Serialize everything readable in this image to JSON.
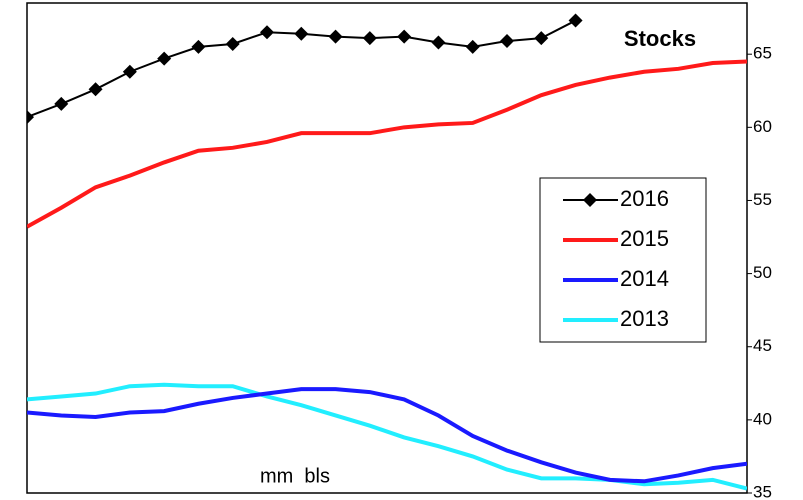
{
  "chart_data": {
    "type": "line",
    "annotations": [
      "Stocks",
      "mm  bls"
    ],
    "categories": [
      null,
      null,
      null,
      null,
      null,
      null,
      null,
      null,
      null,
      null,
      null,
      null,
      null,
      null,
      null,
      null,
      null,
      null,
      null,
      null,
      null,
      null
    ],
    "ylim": [
      35,
      68.5
    ],
    "yticks": [
      35,
      40,
      45,
      50,
      55,
      60,
      65
    ],
    "y_axis_side": "right",
    "series": [
      {
        "name": "2016",
        "color": "#000000",
        "marker": "diamond",
        "values": [
          60.7,
          61.6,
          62.6,
          63.8,
          64.7,
          65.5,
          65.7,
          66.5,
          66.4,
          66.2,
          66.1,
          66.2,
          65.8,
          65.5,
          65.9,
          66.1,
          67.3,
          null,
          null,
          null,
          null,
          null
        ]
      },
      {
        "name": "2015",
        "color": "#ff1a1a",
        "values": [
          53.2,
          54.5,
          55.9,
          56.7,
          57.6,
          58.4,
          58.6,
          59.0,
          59.6,
          59.6,
          59.6,
          60.0,
          60.2,
          60.3,
          61.2,
          62.2,
          62.9,
          63.4,
          63.8,
          64.0,
          64.4,
          64.5
        ]
      },
      {
        "name": "2014",
        "color": "#1a1aff",
        "values": [
          40.5,
          40.3,
          40.2,
          40.5,
          40.6,
          41.1,
          41.5,
          41.8,
          42.1,
          42.1,
          41.9,
          41.4,
          40.3,
          38.9,
          37.9,
          37.1,
          36.4,
          35.9,
          35.8,
          36.2,
          36.7,
          37.0
        ]
      },
      {
        "name": "2013",
        "color": "#22eeff",
        "values": [
          41.4,
          41.6,
          41.8,
          42.3,
          42.4,
          42.3,
          42.3,
          41.6,
          41.0,
          40.3,
          39.6,
          38.8,
          38.2,
          37.5,
          36.6,
          36.0,
          36.0,
          35.9,
          35.6,
          35.7,
          35.9,
          35.3
        ]
      }
    ]
  }
}
